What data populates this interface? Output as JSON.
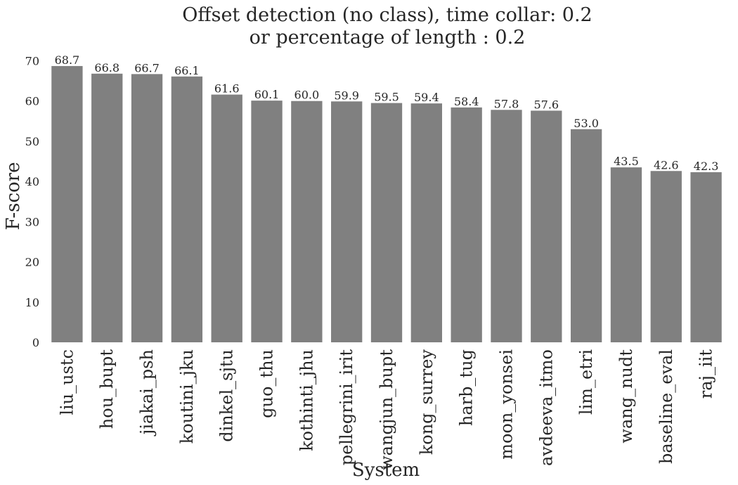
{
  "chart_data": {
    "type": "bar",
    "title": [
      "Offset detection (no class), time collar: 0.2",
      "or percentage of length : 0.2"
    ],
    "xlabel": "System",
    "ylabel": "F-score",
    "ylim": [
      0,
      70
    ],
    "yticks": [
      0,
      10,
      20,
      30,
      40,
      50,
      60,
      70
    ],
    "grid": false,
    "bar_color": "#808080",
    "categories": [
      "liu_ustc",
      "hou_bupt",
      "jiakai_psh",
      "koutini_jku",
      "dinkel_sjtu",
      "guo_thu",
      "kothinti_jhu",
      "pellegrini_irit",
      "wangjun_bupt",
      "kong_surrey",
      "harb_tug",
      "moon_yonsei",
      "avdeeva_itmo",
      "lim_etri",
      "wang_nudt",
      "baseline_eval",
      "raj_iit"
    ],
    "values": [
      68.7,
      66.8,
      66.7,
      66.1,
      61.6,
      60.1,
      60.0,
      59.9,
      59.5,
      59.4,
      58.4,
      57.8,
      57.6,
      53.0,
      43.5,
      42.6,
      42.3
    ],
    "value_labels": [
      "68.7",
      "66.8",
      "66.7",
      "66.1",
      "61.6",
      "60.1",
      "60.0",
      "59.9",
      "59.5",
      "59.4",
      "58.4",
      "57.8",
      "57.6",
      "53.0",
      "43.5",
      "42.6",
      "42.3"
    ]
  }
}
